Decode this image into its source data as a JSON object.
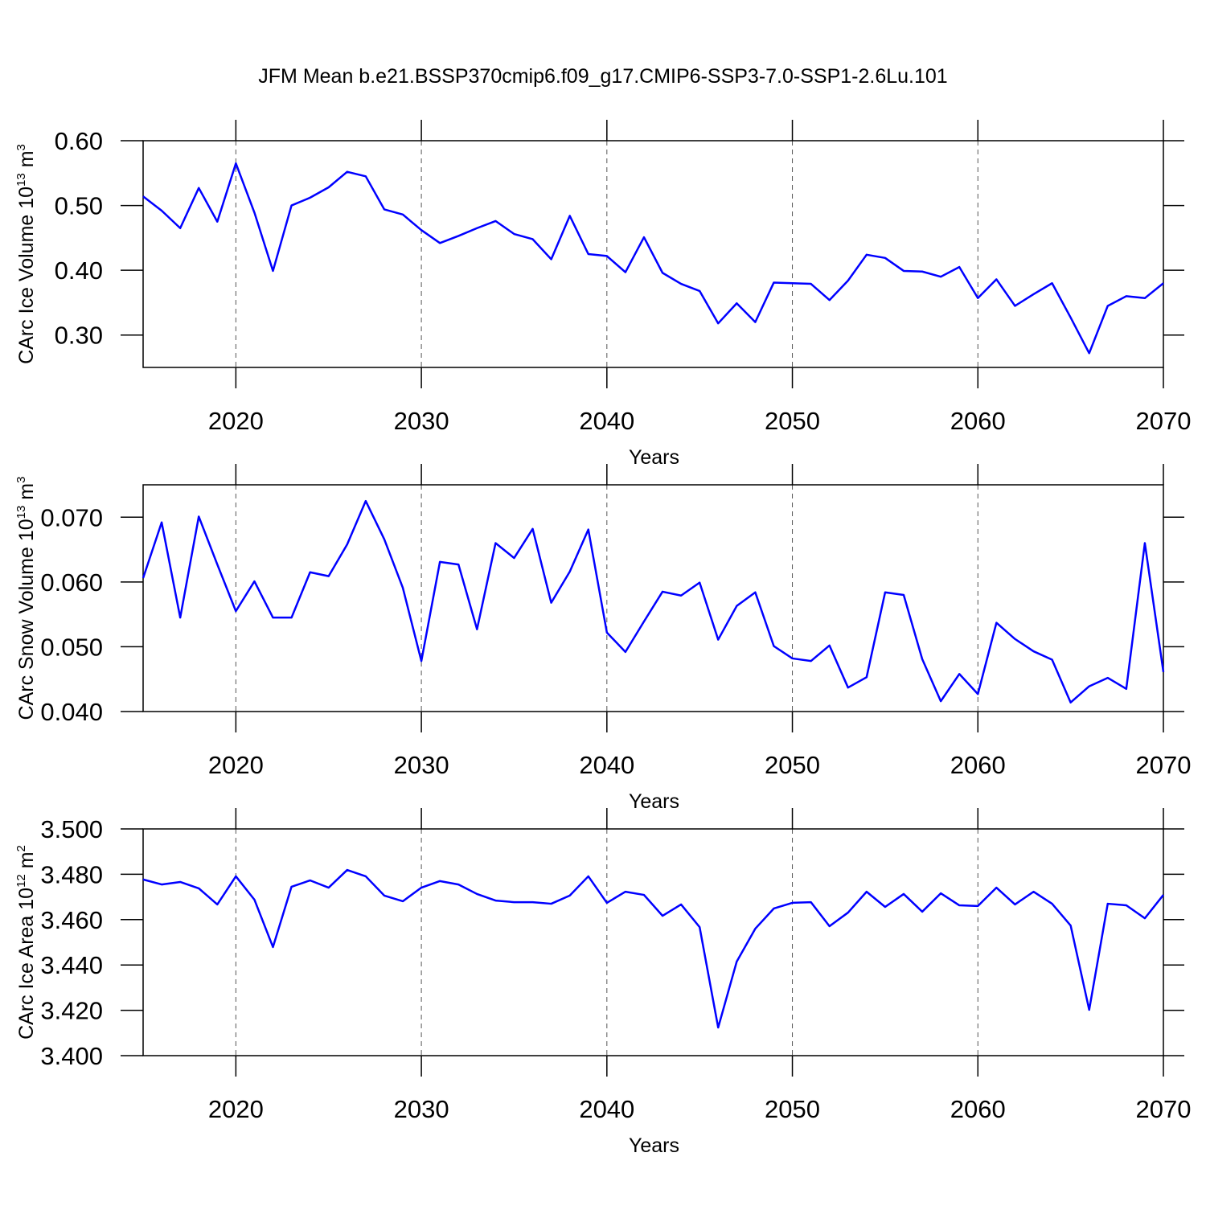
{
  "chart_data": [
    {
      "type": "line",
      "title": "JFM Mean b.e21.BSSP370cmip6.f09_g17.CMIP6-SSP3-7.0-SSP1-2.6Lu.101",
      "xlabel": "Years",
      "ylabel": [
        "CArc Ice Volume 10",
        "13",
        " m",
        "3"
      ],
      "color": "#0000ff",
      "xgrid": true,
      "x": [
        2015,
        2016,
        2017,
        2018,
        2019,
        2020,
        2021,
        2022,
        2023,
        2024,
        2025,
        2026,
        2027,
        2028,
        2029,
        2030,
        2031,
        2032,
        2033,
        2034,
        2035,
        2036,
        2037,
        2038,
        2039,
        2040,
        2041,
        2042,
        2043,
        2044,
        2045,
        2046,
        2047,
        2048,
        2049,
        2050,
        2051,
        2052,
        2053,
        2054,
        2055,
        2056,
        2057,
        2058,
        2059,
        2060,
        2061,
        2062,
        2063,
        2064,
        2065,
        2066,
        2067,
        2068,
        2069,
        2070
      ],
      "values": [
        0.514,
        0.492,
        0.465,
        0.527,
        0.475,
        0.565,
        0.489,
        0.399,
        0.5,
        0.512,
        0.528,
        0.552,
        0.545,
        0.494,
        0.486,
        0.462,
        0.442,
        0.453,
        0.465,
        0.476,
        0.456,
        0.448,
        0.417,
        0.484,
        0.425,
        0.422,
        0.397,
        0.451,
        0.396,
        0.379,
        0.368,
        0.318,
        0.349,
        0.32,
        0.381,
        0.38,
        0.379,
        0.354,
        0.384,
        0.424,
        0.419,
        0.399,
        0.398,
        0.39,
        0.405,
        0.357,
        0.386,
        0.345,
        0.363,
        0.38,
        0.327,
        0.272,
        0.345,
        0.36,
        0.357,
        0.38
      ],
      "xlim": [
        2015,
        2070
      ],
      "xticks": [
        2020,
        2030,
        2040,
        2050,
        2060,
        2070
      ],
      "ylim": [
        0.25,
        0.6
      ],
      "yticks": [
        {
          "value": 0.3,
          "label": "0.30"
        },
        {
          "value": 0.4,
          "label": "0.40"
        },
        {
          "value": 0.5,
          "label": "0.50"
        },
        {
          "value": 0.6,
          "label": "0.60"
        }
      ]
    },
    {
      "type": "line",
      "xlabel": "Years",
      "ylabel": [
        "CArc Snow Volume 10",
        "13",
        " m",
        "3"
      ],
      "color": "#0000ff",
      "xgrid": true,
      "x": [
        2015,
        2016,
        2017,
        2018,
        2019,
        2020,
        2021,
        2022,
        2023,
        2024,
        2025,
        2026,
        2027,
        2028,
        2029,
        2030,
        2031,
        2032,
        2033,
        2034,
        2035,
        2036,
        2037,
        2038,
        2039,
        2040,
        2041,
        2042,
        2043,
        2044,
        2045,
        2046,
        2047,
        2048,
        2049,
        2050,
        2051,
        2052,
        2053,
        2054,
        2055,
        2056,
        2057,
        2058,
        2059,
        2060,
        2061,
        2062,
        2063,
        2064,
        2065,
        2066,
        2067,
        2068,
        2069,
        2070
      ],
      "values": [
        0.0606,
        0.0692,
        0.0545,
        0.0701,
        0.0627,
        0.0555,
        0.0601,
        0.0545,
        0.0545,
        0.0615,
        0.0609,
        0.0658,
        0.0725,
        0.0666,
        0.0591,
        0.0478,
        0.0631,
        0.0627,
        0.0527,
        0.066,
        0.0637,
        0.0682,
        0.0568,
        0.0616,
        0.0681,
        0.0522,
        0.0492,
        0.0539,
        0.0585,
        0.0579,
        0.0599,
        0.0511,
        0.0563,
        0.0584,
        0.0501,
        0.0482,
        0.0478,
        0.0502,
        0.0437,
        0.0453,
        0.0584,
        0.058,
        0.0481,
        0.0416,
        0.0458,
        0.0427,
        0.0537,
        0.0512,
        0.0493,
        0.048,
        0.0414,
        0.0439,
        0.0452,
        0.0435,
        0.066,
        0.0461
      ],
      "xlim": [
        2015,
        2070
      ],
      "xticks": [
        2020,
        2030,
        2040,
        2050,
        2060,
        2070
      ],
      "ylim": [
        0.04,
        0.075
      ],
      "yticks": [
        {
          "value": 0.04,
          "label": "0.040"
        },
        {
          "value": 0.05,
          "label": "0.050"
        },
        {
          "value": 0.06,
          "label": "0.060"
        },
        {
          "value": 0.07,
          "label": "0.070"
        }
      ]
    },
    {
      "type": "line",
      "xlabel": "Years",
      "ylabel": [
        "CArc Ice Area 10",
        "12",
        " m",
        "2"
      ],
      "color": "#0000ff",
      "xgrid": true,
      "x": [
        2015,
        2016,
        2017,
        2018,
        2019,
        2020,
        2021,
        2022,
        2023,
        2024,
        2025,
        2026,
        2027,
        2028,
        2029,
        2030,
        2031,
        2032,
        2033,
        2034,
        2035,
        2036,
        2037,
        2038,
        2039,
        2040,
        2041,
        2042,
        2043,
        2044,
        2045,
        2046,
        2047,
        2048,
        2049,
        2050,
        2051,
        2052,
        2053,
        2054,
        2055,
        2056,
        2057,
        2058,
        2059,
        2060,
        2061,
        2062,
        2063,
        2064,
        2065,
        2066,
        2067,
        2068,
        2069,
        2070
      ],
      "values": [
        3.4777,
        3.4755,
        3.4766,
        3.4738,
        3.4667,
        3.4791,
        3.4688,
        3.4479,
        3.4745,
        3.4773,
        3.4741,
        3.4819,
        3.4791,
        3.4706,
        3.4681,
        3.4741,
        3.477,
        3.4755,
        3.4713,
        3.4684,
        3.4677,
        3.4677,
        3.467,
        3.4706,
        3.4791,
        3.4674,
        3.4723,
        3.4709,
        3.4617,
        3.4667,
        3.4567,
        3.4124,
        3.4415,
        3.456,
        3.4649,
        3.4674,
        3.4677,
        3.4571,
        3.4631,
        3.4723,
        3.4656,
        3.4713,
        3.4635,
        3.4716,
        3.4663,
        3.466,
        3.4741,
        3.4667,
        3.4723,
        3.467,
        3.4574,
        3.4202,
        3.467,
        3.4663,
        3.4606,
        3.4709
      ],
      "xlim": [
        2015,
        2070
      ],
      "xticks": [
        2020,
        2030,
        2040,
        2050,
        2060,
        2070
      ],
      "ylim": [
        3.4,
        3.5
      ],
      "yticks": [
        {
          "value": 3.4,
          "label": "3.400"
        },
        {
          "value": 3.42,
          "label": "3.420"
        },
        {
          "value": 3.44,
          "label": "3.440"
        },
        {
          "value": 3.46,
          "label": "3.460"
        },
        {
          "value": 3.48,
          "label": "3.480"
        },
        {
          "value": 3.5,
          "label": "3.500"
        }
      ]
    }
  ]
}
